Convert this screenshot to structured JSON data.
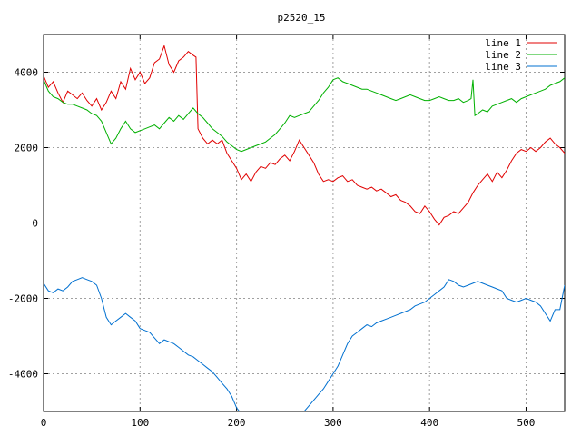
{
  "chart_data": {
    "type": "line",
    "title": "p2520_15",
    "xlabel": "",
    "ylabel": "",
    "xlim": [
      0,
      540
    ],
    "ylim": [
      -5000,
      5000
    ],
    "x_ticks": [
      0,
      100,
      200,
      300,
      400,
      500
    ],
    "y_ticks": [
      -4000,
      -2000,
      0,
      2000,
      4000
    ],
    "x_tick_labels": [
      "0",
      "100",
      "200",
      "300",
      "400",
      "500"
    ],
    "y_tick_labels": [
      "-4000",
      "-2000",
      "0",
      "2000",
      "4000"
    ],
    "grid": true,
    "legend_position": "top-right",
    "series": [
      {
        "name": "line 1",
        "color": "#e00000",
        "points": [
          [
            0,
            3900
          ],
          [
            5,
            3600
          ],
          [
            10,
            3750
          ],
          [
            15,
            3450
          ],
          [
            20,
            3200
          ],
          [
            25,
            3500
          ],
          [
            30,
            3400
          ],
          [
            35,
            3300
          ],
          [
            40,
            3450
          ],
          [
            45,
            3250
          ],
          [
            50,
            3100
          ],
          [
            55,
            3300
          ],
          [
            60,
            3000
          ],
          [
            65,
            3200
          ],
          [
            70,
            3500
          ],
          [
            75,
            3300
          ],
          [
            80,
            3750
          ],
          [
            85,
            3550
          ],
          [
            90,
            4100
          ],
          [
            95,
            3800
          ],
          [
            100,
            4000
          ],
          [
            105,
            3700
          ],
          [
            110,
            3850
          ],
          [
            115,
            4250
          ],
          [
            120,
            4350
          ],
          [
            125,
            4700
          ],
          [
            130,
            4200
          ],
          [
            135,
            4000
          ],
          [
            140,
            4300
          ],
          [
            145,
            4400
          ],
          [
            150,
            4550
          ],
          [
            155,
            4450
          ],
          [
            158,
            4400
          ],
          [
            160,
            2500
          ],
          [
            165,
            2250
          ],
          [
            170,
            2100
          ],
          [
            175,
            2200
          ],
          [
            180,
            2100
          ],
          [
            185,
            2200
          ],
          [
            190,
            1850
          ],
          [
            195,
            1650
          ],
          [
            200,
            1450
          ],
          [
            205,
            1150
          ],
          [
            210,
            1300
          ],
          [
            215,
            1100
          ],
          [
            220,
            1350
          ],
          [
            225,
            1500
          ],
          [
            230,
            1450
          ],
          [
            235,
            1600
          ],
          [
            240,
            1550
          ],
          [
            245,
            1700
          ],
          [
            250,
            1800
          ],
          [
            255,
            1650
          ],
          [
            260,
            1900
          ],
          [
            265,
            2200
          ],
          [
            270,
            2000
          ],
          [
            275,
            1800
          ],
          [
            280,
            1600
          ],
          [
            285,
            1300
          ],
          [
            290,
            1100
          ],
          [
            295,
            1150
          ],
          [
            300,
            1100
          ],
          [
            305,
            1200
          ],
          [
            310,
            1250
          ],
          [
            315,
            1100
          ],
          [
            320,
            1150
          ],
          [
            325,
            1000
          ],
          [
            330,
            950
          ],
          [
            335,
            900
          ],
          [
            340,
            950
          ],
          [
            345,
            850
          ],
          [
            350,
            900
          ],
          [
            355,
            800
          ],
          [
            360,
            700
          ],
          [
            365,
            750
          ],
          [
            370,
            600
          ],
          [
            375,
            550
          ],
          [
            380,
            450
          ],
          [
            385,
            300
          ],
          [
            390,
            250
          ],
          [
            395,
            450
          ],
          [
            400,
            300
          ],
          [
            405,
            100
          ],
          [
            410,
            -50
          ],
          [
            415,
            150
          ],
          [
            420,
            200
          ],
          [
            425,
            300
          ],
          [
            430,
            250
          ],
          [
            435,
            400
          ],
          [
            440,
            550
          ],
          [
            445,
            800
          ],
          [
            450,
            1000
          ],
          [
            455,
            1150
          ],
          [
            460,
            1300
          ],
          [
            465,
            1100
          ],
          [
            470,
            1350
          ],
          [
            475,
            1200
          ],
          [
            480,
            1400
          ],
          [
            485,
            1650
          ],
          [
            490,
            1850
          ],
          [
            495,
            1950
          ],
          [
            500,
            1900
          ],
          [
            505,
            2000
          ],
          [
            510,
            1900
          ],
          [
            515,
            2000
          ],
          [
            520,
            2150
          ],
          [
            525,
            2250
          ],
          [
            530,
            2100
          ],
          [
            535,
            2000
          ],
          [
            540,
            1850
          ]
        ]
      },
      {
        "name": "line 2",
        "color": "#00b000",
        "points": [
          [
            0,
            3800
          ],
          [
            5,
            3500
          ],
          [
            10,
            3350
          ],
          [
            15,
            3300
          ],
          [
            20,
            3200
          ],
          [
            25,
            3150
          ],
          [
            30,
            3150
          ],
          [
            35,
            3100
          ],
          [
            40,
            3050
          ],
          [
            45,
            3000
          ],
          [
            50,
            2900
          ],
          [
            55,
            2850
          ],
          [
            60,
            2700
          ],
          [
            65,
            2400
          ],
          [
            70,
            2100
          ],
          [
            75,
            2250
          ],
          [
            80,
            2500
          ],
          [
            85,
            2700
          ],
          [
            90,
            2500
          ],
          [
            95,
            2400
          ],
          [
            100,
            2450
          ],
          [
            105,
            2500
          ],
          [
            110,
            2550
          ],
          [
            115,
            2600
          ],
          [
            120,
            2500
          ],
          [
            125,
            2650
          ],
          [
            130,
            2800
          ],
          [
            135,
            2700
          ],
          [
            140,
            2850
          ],
          [
            145,
            2750
          ],
          [
            150,
            2900
          ],
          [
            155,
            3050
          ],
          [
            160,
            2900
          ],
          [
            165,
            2800
          ],
          [
            170,
            2650
          ],
          [
            175,
            2500
          ],
          [
            180,
            2400
          ],
          [
            185,
            2300
          ],
          [
            190,
            2150
          ],
          [
            195,
            2050
          ],
          [
            200,
            1950
          ],
          [
            205,
            1900
          ],
          [
            210,
            1950
          ],
          [
            215,
            2000
          ],
          [
            220,
            2050
          ],
          [
            225,
            2100
          ],
          [
            230,
            2150
          ],
          [
            235,
            2250
          ],
          [
            240,
            2350
          ],
          [
            245,
            2500
          ],
          [
            250,
            2650
          ],
          [
            255,
            2850
          ],
          [
            260,
            2800
          ],
          [
            265,
            2850
          ],
          [
            270,
            2900
          ],
          [
            275,
            2950
          ],
          [
            280,
            3100
          ],
          [
            285,
            3250
          ],
          [
            290,
            3450
          ],
          [
            295,
            3600
          ],
          [
            300,
            3800
          ],
          [
            305,
            3850
          ],
          [
            310,
            3750
          ],
          [
            315,
            3700
          ],
          [
            320,
            3650
          ],
          [
            325,
            3600
          ],
          [
            330,
            3550
          ],
          [
            335,
            3550
          ],
          [
            340,
            3500
          ],
          [
            345,
            3450
          ],
          [
            350,
            3400
          ],
          [
            355,
            3350
          ],
          [
            360,
            3300
          ],
          [
            365,
            3250
          ],
          [
            370,
            3300
          ],
          [
            375,
            3350
          ],
          [
            380,
            3400
          ],
          [
            385,
            3350
          ],
          [
            390,
            3300
          ],
          [
            395,
            3250
          ],
          [
            400,
            3250
          ],
          [
            405,
            3300
          ],
          [
            410,
            3350
          ],
          [
            415,
            3300
          ],
          [
            420,
            3250
          ],
          [
            425,
            3250
          ],
          [
            430,
            3300
          ],
          [
            435,
            3200
          ],
          [
            440,
            3250
          ],
          [
            443,
            3300
          ],
          [
            445,
            3800
          ],
          [
            447,
            2850
          ],
          [
            450,
            2900
          ],
          [
            455,
            3000
          ],
          [
            460,
            2950
          ],
          [
            465,
            3100
          ],
          [
            470,
            3150
          ],
          [
            475,
            3200
          ],
          [
            480,
            3250
          ],
          [
            485,
            3300
          ],
          [
            490,
            3200
          ],
          [
            495,
            3300
          ],
          [
            500,
            3350
          ],
          [
            505,
            3400
          ],
          [
            510,
            3450
          ],
          [
            515,
            3500
          ],
          [
            520,
            3550
          ],
          [
            525,
            3650
          ],
          [
            530,
            3700
          ],
          [
            535,
            3750
          ],
          [
            540,
            3850
          ]
        ]
      },
      {
        "name": "line 3",
        "color": "#0070d0",
        "points": [
          [
            0,
            -1600
          ],
          [
            5,
            -1800
          ],
          [
            10,
            -1850
          ],
          [
            15,
            -1750
          ],
          [
            20,
            -1800
          ],
          [
            25,
            -1700
          ],
          [
            30,
            -1550
          ],
          [
            35,
            -1500
          ],
          [
            40,
            -1450
          ],
          [
            45,
            -1500
          ],
          [
            50,
            -1550
          ],
          [
            55,
            -1650
          ],
          [
            60,
            -2000
          ],
          [
            65,
            -2500
          ],
          [
            70,
            -2700
          ],
          [
            75,
            -2600
          ],
          [
            80,
            -2500
          ],
          [
            85,
            -2400
          ],
          [
            90,
            -2500
          ],
          [
            95,
            -2600
          ],
          [
            100,
            -2800
          ],
          [
            105,
            -2850
          ],
          [
            110,
            -2900
          ],
          [
            115,
            -3050
          ],
          [
            120,
            -3200
          ],
          [
            125,
            -3100
          ],
          [
            130,
            -3150
          ],
          [
            135,
            -3200
          ],
          [
            140,
            -3300
          ],
          [
            145,
            -3400
          ],
          [
            150,
            -3500
          ],
          [
            155,
            -3550
          ],
          [
            160,
            -3650
          ],
          [
            165,
            -3750
          ],
          [
            170,
            -3850
          ],
          [
            175,
            -3950
          ],
          [
            180,
            -4100
          ],
          [
            185,
            -4250
          ],
          [
            190,
            -4400
          ],
          [
            195,
            -4600
          ],
          [
            200,
            -4900
          ],
          [
            203,
            -5000
          ]
        ],
        "points_segment_2": [
          [
            270,
            -5000
          ],
          [
            275,
            -4850
          ],
          [
            280,
            -4700
          ],
          [
            285,
            -4550
          ],
          [
            290,
            -4400
          ],
          [
            295,
            -4200
          ],
          [
            300,
            -4000
          ],
          [
            305,
            -3800
          ],
          [
            310,
            -3500
          ],
          [
            315,
            -3200
          ],
          [
            320,
            -3000
          ],
          [
            325,
            -2900
          ],
          [
            330,
            -2800
          ],
          [
            335,
            -2700
          ],
          [
            340,
            -2750
          ],
          [
            345,
            -2650
          ],
          [
            350,
            -2600
          ],
          [
            355,
            -2550
          ],
          [
            360,
            -2500
          ],
          [
            365,
            -2450
          ],
          [
            370,
            -2400
          ],
          [
            375,
            -2350
          ],
          [
            380,
            -2300
          ],
          [
            385,
            -2200
          ],
          [
            390,
            -2150
          ],
          [
            395,
            -2100
          ],
          [
            400,
            -2000
          ],
          [
            405,
            -1900
          ],
          [
            410,
            -1800
          ],
          [
            415,
            -1700
          ],
          [
            420,
            -1500
          ],
          [
            425,
            -1550
          ],
          [
            430,
            -1650
          ],
          [
            435,
            -1700
          ],
          [
            440,
            -1650
          ],
          [
            445,
            -1600
          ],
          [
            450,
            -1550
          ],
          [
            455,
            -1600
          ],
          [
            460,
            -1650
          ],
          [
            465,
            -1700
          ],
          [
            470,
            -1750
          ],
          [
            475,
            -1800
          ],
          [
            480,
            -2000
          ],
          [
            485,
            -2050
          ],
          [
            490,
            -2100
          ],
          [
            495,
            -2050
          ],
          [
            500,
            -2000
          ],
          [
            505,
            -2050
          ],
          [
            510,
            -2100
          ],
          [
            515,
            -2200
          ],
          [
            520,
            -2400
          ],
          [
            525,
            -2600
          ],
          [
            530,
            -2300
          ],
          [
            535,
            -2300
          ],
          [
            540,
            -1650
          ]
        ]
      }
    ]
  }
}
